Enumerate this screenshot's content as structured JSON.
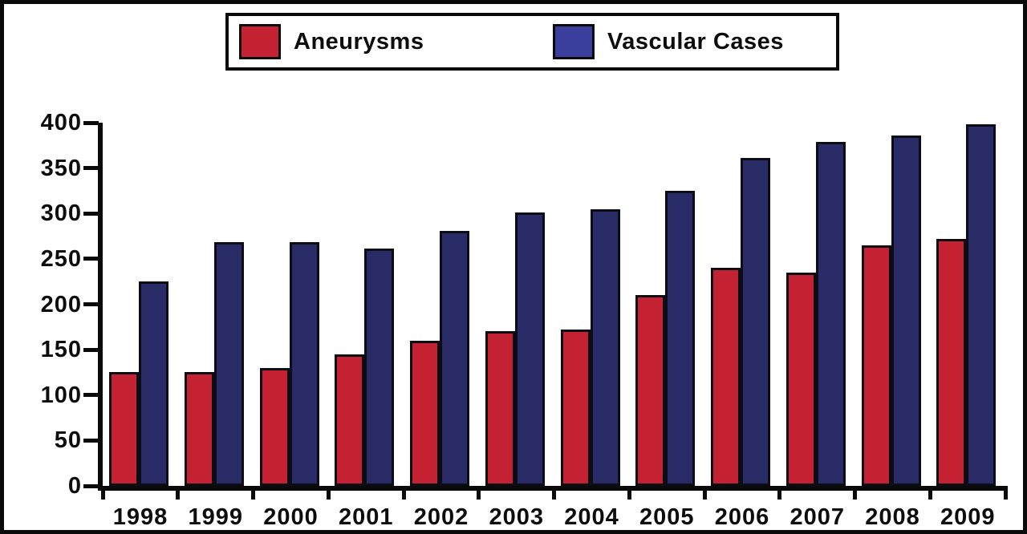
{
  "chart_data": {
    "type": "bar",
    "title": "",
    "xlabel": "",
    "ylabel": "",
    "categories": [
      "1998",
      "1999",
      "2000",
      "2001",
      "2002",
      "2003",
      "2004",
      "2005",
      "2006",
      "2007",
      "2008",
      "2009"
    ],
    "series": [
      {
        "name": "Aneurysms",
        "color": "#C42132",
        "values": [
          125,
          125,
          130,
          145,
          160,
          170,
          172,
          210,
          240,
          235,
          265,
          272
        ]
      },
      {
        "name": "Vascular Cases",
        "color": "#292B67",
        "values": [
          225,
          268,
          268,
          261,
          281,
          301,
          305,
          325,
          361,
          379,
          386,
          398
        ]
      }
    ],
    "ylim": [
      0,
      400
    ],
    "ytick_step": 50,
    "ytick_labels": [
      "0",
      "50",
      "100",
      "150",
      "200",
      "250",
      "300",
      "350",
      "400"
    ],
    "grid": false,
    "legend_position": "top"
  },
  "legend": {
    "items": [
      {
        "label": "Aneurysms",
        "swatch_color": "#C42132"
      },
      {
        "label": "Vascular Cases",
        "swatch_color": "#3A3E9C"
      }
    ]
  }
}
